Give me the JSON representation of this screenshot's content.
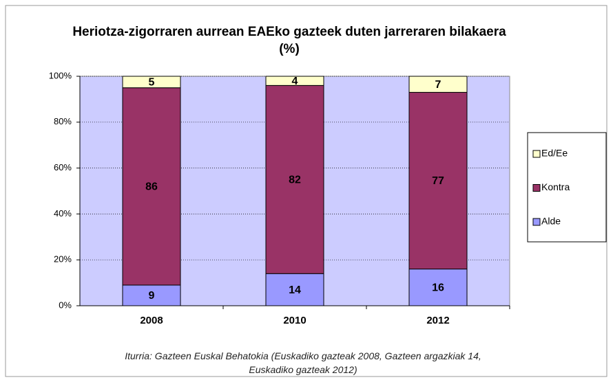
{
  "chart_data": {
    "type": "stacked_bar",
    "title": "Heriotza-zigorraren aurrean EAEko gazteek duten jarreraren bilakaera (%)",
    "note": "Iturria: Gazteen Euskal Behatokia (Euskadiko gazteak 2008, Gazteen argazkiak 14, Euskadiko gazteak 2012)",
    "categories": [
      "2008",
      "2010",
      "2012"
    ],
    "series": [
      {
        "name": "Alde",
        "color": "#9999ff",
        "values": [
          9,
          14,
          16
        ]
      },
      {
        "name": "Kontra",
        "color": "#993366",
        "values": [
          86,
          82,
          77
        ]
      },
      {
        "name": "Ed/Ee",
        "color": "#ffffcc",
        "values": [
          5,
          4,
          7
        ]
      }
    ],
    "ylim": [
      0,
      100
    ],
    "yticks": [
      {
        "value": 0,
        "label": "0%"
      },
      {
        "value": 20,
        "label": "20%"
      },
      {
        "value": 40,
        "label": "40%"
      },
      {
        "value": 60,
        "label": "60%"
      },
      {
        "value": 80,
        "label": "80%"
      },
      {
        "value": 100,
        "label": "100%"
      }
    ],
    "grid": true,
    "legend": "right",
    "plot_background": "#ccccff"
  }
}
